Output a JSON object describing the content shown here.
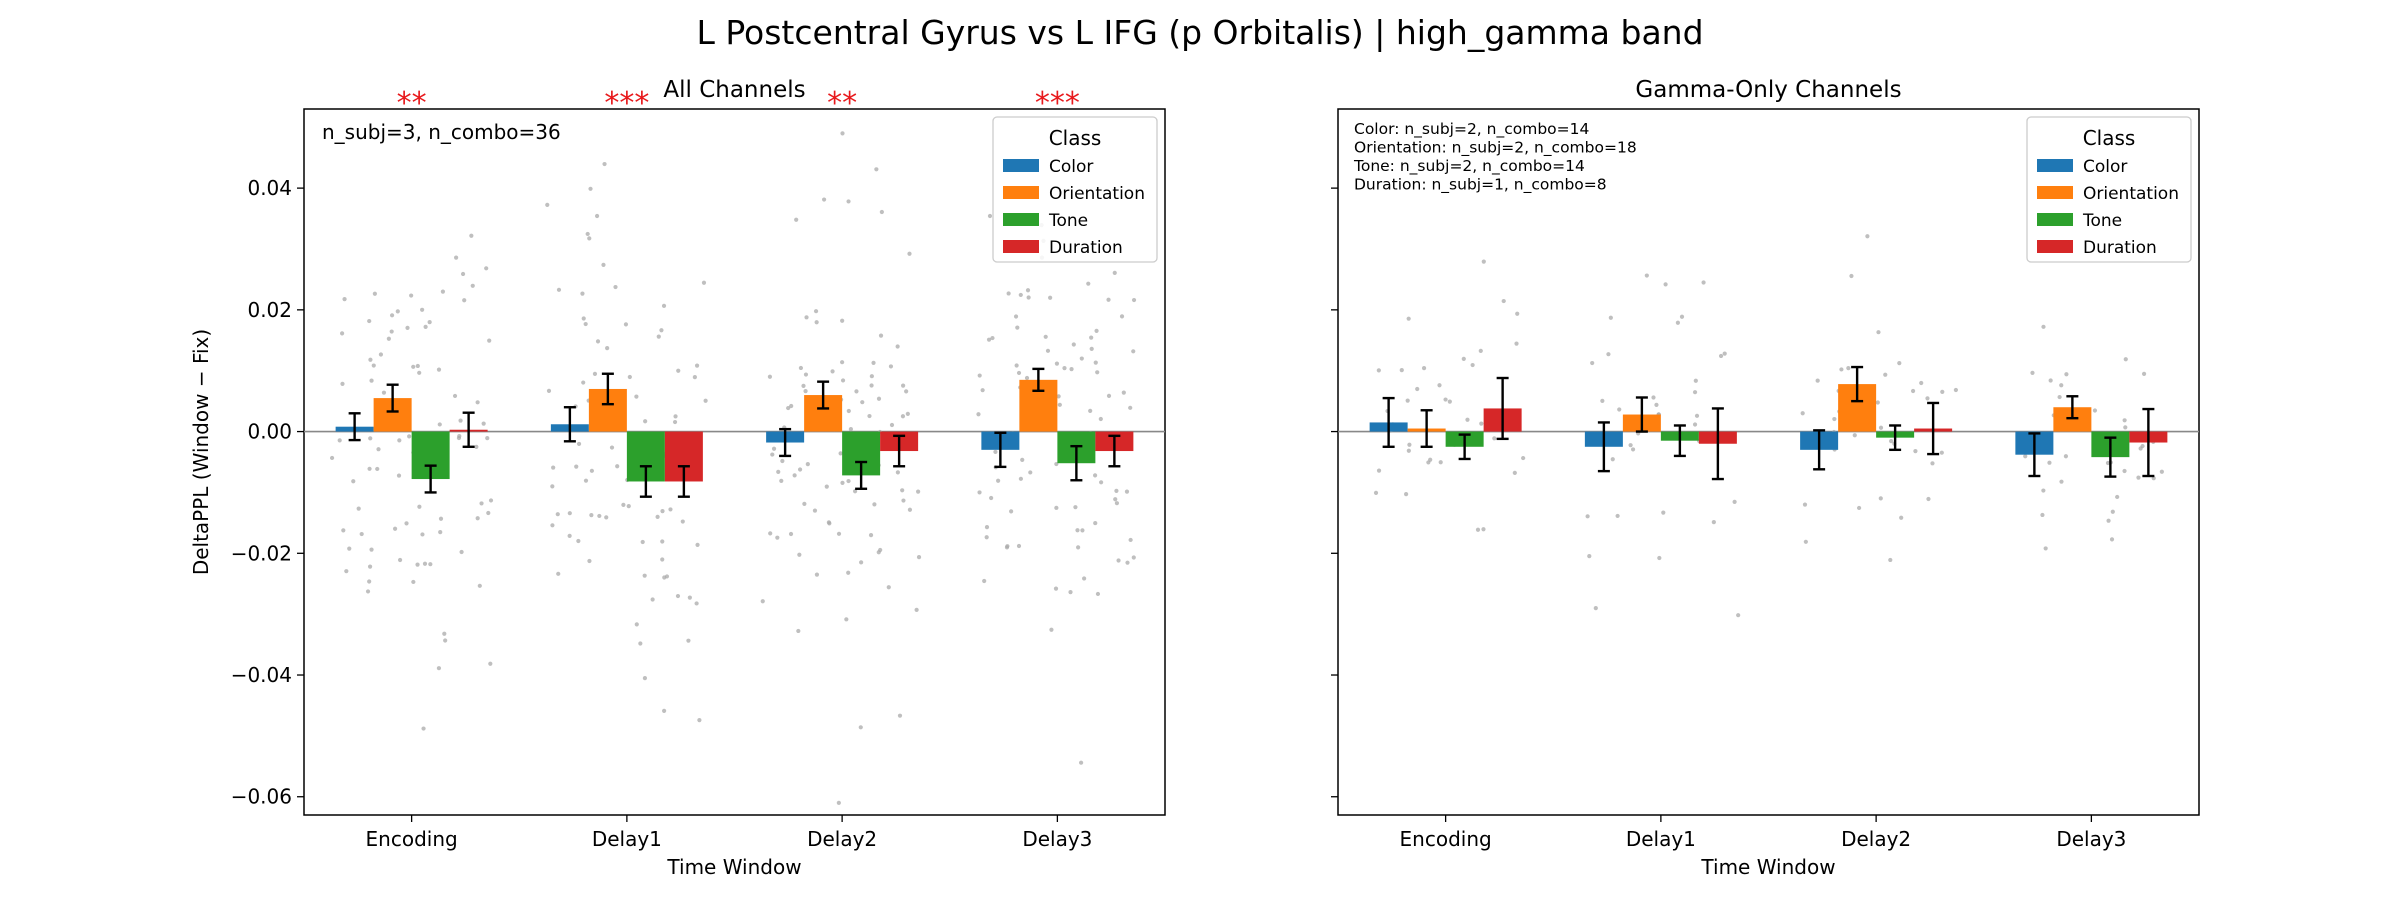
{
  "figure": {
    "suptitle": "L Postcentral Gyrus vs L IFG (p Orbitalis)  |  high_gamma band",
    "ylabel": "DeltaPPL (Window − Fix)",
    "colors": {
      "Color": "#1f77b4",
      "Orientation": "#ff7f0e",
      "Tone": "#2ca02c",
      "Duration": "#d62728",
      "sig": "#e8191c",
      "zero_line": "#888888",
      "dots": "#aaaaaa"
    }
  },
  "chart_data": [
    {
      "type": "bar",
      "title": "All Channels",
      "xlabel": "Time Window",
      "ylabel": "DeltaPPL (Window − Fix)",
      "categories": [
        "Encoding",
        "Delay1",
        "Delay2",
        "Delay3"
      ],
      "ylim": [
        -0.063,
        0.053
      ],
      "yticks": [
        0.04,
        0.02,
        0.0,
        -0.02,
        -0.04,
        -0.06
      ],
      "ytick_labels": [
        "0.04",
        "0.02",
        "0.00",
        "−0.02",
        "−0.04",
        "−0.06"
      ],
      "legend_title": "Class",
      "legend_position": "top-right",
      "annotation": [
        "n_subj=3, n_combo=36"
      ],
      "significance": [
        "**",
        "***",
        "**",
        "***"
      ],
      "series": [
        {
          "name": "Color",
          "values": [
            0.0008,
            0.0012,
            -0.0018,
            -0.003
          ],
          "errors": [
            0.0022,
            0.0028,
            0.0022,
            0.0028
          ]
        },
        {
          "name": "Orientation",
          "values": [
            0.0055,
            0.007,
            0.006,
            0.0085
          ],
          "errors": [
            0.0022,
            0.0025,
            0.0022,
            0.0018
          ]
        },
        {
          "name": "Tone",
          "values": [
            -0.0078,
            -0.0082,
            -0.0072,
            -0.0052
          ],
          "errors": [
            0.0022,
            0.0025,
            0.0022,
            0.0028
          ]
        },
        {
          "name": "Duration",
          "values": [
            0.0003,
            -0.0082,
            -0.0032,
            -0.0032
          ],
          "errors": [
            0.0028,
            0.0025,
            0.0025,
            0.0025
          ]
        }
      ]
    },
    {
      "type": "bar",
      "title": "Gamma-Only Channels",
      "xlabel": "Time Window",
      "ylabel": "",
      "categories": [
        "Encoding",
        "Delay1",
        "Delay2",
        "Delay3"
      ],
      "ylim": [
        -0.063,
        0.053
      ],
      "yticks": [
        0.04,
        0.02,
        0.0,
        -0.02,
        -0.04,
        -0.06
      ],
      "ytick_labels": [
        "",
        "",
        "",
        "",
        "",
        ""
      ],
      "legend_title": "Class",
      "legend_position": "top-right",
      "annotation": [
        "Color: n_subj=2, n_combo=14",
        "Orientation: n_subj=2, n_combo=18",
        "Tone: n_subj=2, n_combo=14",
        "Duration: n_subj=1, n_combo=8"
      ],
      "significance": [
        "",
        "",
        "",
        ""
      ],
      "series": [
        {
          "name": "Color",
          "values": [
            0.0015,
            -0.0025,
            -0.003,
            -0.0038
          ],
          "errors": [
            0.004,
            0.004,
            0.0032,
            0.0035
          ]
        },
        {
          "name": "Orientation",
          "values": [
            0.0005,
            0.0028,
            0.0078,
            0.004
          ],
          "errors": [
            0.003,
            0.0028,
            0.0028,
            0.0018
          ]
        },
        {
          "name": "Tone",
          "values": [
            -0.0025,
            -0.0015,
            -0.001,
            -0.0042
          ],
          "errors": [
            0.002,
            0.0025,
            0.002,
            0.0032
          ]
        },
        {
          "name": "Duration",
          "values": [
            0.0038,
            -0.002,
            0.0005,
            -0.0018
          ],
          "errors": [
            0.005,
            0.0058,
            0.0042,
            0.0055
          ]
        }
      ]
    }
  ]
}
